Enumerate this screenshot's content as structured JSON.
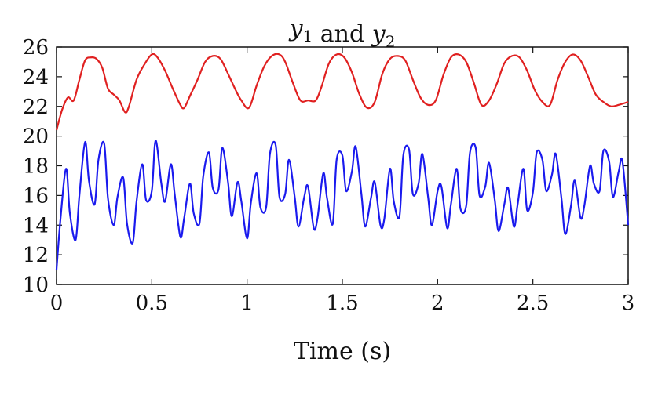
{
  "chart_data": {
    "type": "line",
    "title": "y1 and y2",
    "title_parts": [
      {
        "base": "y",
        "sub": "1"
      },
      {
        "text": " and "
      },
      {
        "base": "y",
        "sub": "2"
      }
    ],
    "xlabel": "Time (s)",
    "ylabel": "",
    "xlim": [
      0,
      3
    ],
    "ylim": [
      10,
      26
    ],
    "xticks": [
      0,
      0.5,
      1,
      1.5,
      2,
      2.5,
      3
    ],
    "xtick_labels": [
      "0",
      "0.5",
      "1",
      "1.5",
      "2",
      "2.5",
      "3"
    ],
    "yticks": [
      10,
      12,
      14,
      16,
      18,
      20,
      22,
      24,
      26
    ],
    "ytick_labels": [
      "10",
      "12",
      "14",
      "16",
      "18",
      "20",
      "22",
      "24",
      "26"
    ],
    "grid": false,
    "series": [
      {
        "color": "#e02020",
        "x": [
          0,
          0.03,
          0.06,
          0.09,
          0.12,
          0.15,
          0.18,
          0.21,
          0.24,
          0.27,
          0.3,
          0.33,
          0.36,
          0.38,
          0.42,
          0.46,
          0.5,
          0.53,
          0.57,
          0.61,
          0.65,
          0.67,
          0.7,
          0.74,
          0.78,
          0.82,
          0.86,
          0.9,
          0.94,
          0.97,
          1.01,
          1.05,
          1.09,
          1.13,
          1.17,
          1.2,
          1.24,
          1.28,
          1.32,
          1.36,
          1.39,
          1.43,
          1.47,
          1.51,
          1.55,
          1.59,
          1.63,
          1.67,
          1.71,
          1.75,
          1.79,
          1.83,
          1.87,
          1.91,
          1.95,
          1.99,
          2.03,
          2.07,
          2.11,
          2.15,
          2.19,
          2.23,
          2.27,
          2.31,
          2.35,
          2.39,
          2.43,
          2.47,
          2.51,
          2.55,
          2.59,
          2.63,
          2.67,
          2.71,
          2.75,
          2.79,
          2.83,
          2.87,
          2.91,
          2.95,
          3.0
        ],
        "y": [
          20.4,
          21.8,
          22.6,
          22.4,
          23.8,
          25.1,
          25.3,
          25.2,
          24.6,
          23.2,
          22.8,
          22.4,
          21.6,
          22.0,
          23.8,
          24.8,
          25.5,
          25.3,
          24.4,
          23.2,
          22.1,
          21.9,
          22.7,
          23.8,
          25.0,
          25.4,
          25.2,
          24.2,
          23.1,
          22.4,
          21.9,
          23.4,
          24.7,
          25.4,
          25.5,
          25.0,
          23.6,
          22.4,
          22.4,
          22.4,
          23.3,
          24.9,
          25.5,
          25.3,
          24.3,
          22.8,
          21.9,
          22.3,
          24.2,
          25.2,
          25.4,
          25.1,
          23.8,
          22.6,
          22.1,
          22.4,
          24.1,
          25.3,
          25.5,
          25.0,
          23.6,
          22.1,
          22.4,
          23.5,
          24.9,
          25.4,
          25.3,
          24.4,
          23.1,
          22.3,
          22.1,
          23.8,
          25.0,
          25.5,
          25.1,
          24.0,
          22.8,
          22.3,
          22.0,
          22.1,
          22.3
        ]
      },
      {
        "color": "#1a1aee",
        "mode": "wave",
        "x_range": [
          0,
          3
        ],
        "note": "oscillating trace between about 12.8 and 19.7"
      }
    ],
    "series2_points": {
      "x": [
        0.0,
        0.02,
        0.05,
        0.07,
        0.1,
        0.12,
        0.15,
        0.17,
        0.2,
        0.22,
        0.25,
        0.27,
        0.3,
        0.32,
        0.35,
        0.37,
        0.4,
        0.42,
        0.45,
        0.47,
        0.5,
        0.52,
        0.55,
        0.57,
        0.6,
        0.62,
        0.65,
        0.67,
        0.7,
        0.72,
        0.75,
        0.77,
        0.8,
        0.82,
        0.85,
        0.87,
        0.9,
        0.92,
        0.95,
        0.97,
        1.0,
        1.02,
        1.05,
        1.07,
        1.1,
        1.12,
        1.15,
        1.17,
        1.2,
        1.22,
        1.25,
        1.27,
        1.3,
        1.32,
        1.35,
        1.37,
        1.4,
        1.42,
        1.45,
        1.47,
        1.5,
        1.52,
        1.55,
        1.57,
        1.6,
        1.62,
        1.65,
        1.67,
        1.7,
        1.72,
        1.75,
        1.77,
        1.8,
        1.82,
        1.85,
        1.87,
        1.9,
        1.92,
        1.95,
        1.97,
        2.0,
        2.02,
        2.05,
        2.07,
        2.1,
        2.12,
        2.15,
        2.17,
        2.2,
        2.22,
        2.25,
        2.27,
        2.3,
        2.32,
        2.35,
        2.37,
        2.4,
        2.42,
        2.45,
        2.47,
        2.5,
        2.52,
        2.55,
        2.57,
        2.6,
        2.62,
        2.65,
        2.67,
        2.7,
        2.72,
        2.75,
        2.77,
        2.8,
        2.82,
        2.85,
        2.87,
        2.9,
        2.92,
        2.95,
        2.97,
        3.0
      ],
      "y": [
        11.0,
        14.3,
        17.8,
        14.8,
        13.0,
        16.0,
        19.6,
        17.0,
        15.4,
        18.4,
        19.5,
        15.8,
        14.0,
        15.9,
        17.2,
        14.1,
        12.8,
        15.6,
        18.1,
        15.7,
        16.3,
        19.7,
        16.8,
        15.6,
        18.1,
        16.1,
        13.2,
        14.5,
        16.8,
        14.8,
        14.1,
        17.3,
        18.9,
        16.5,
        16.4,
        19.2,
        16.9,
        14.6,
        16.9,
        15.6,
        13.1,
        15.5,
        17.5,
        15.2,
        15.2,
        18.8,
        19.4,
        15.9,
        16.1,
        18.4,
        15.9,
        13.9,
        15.9,
        16.6,
        13.8,
        14.5,
        17.5,
        15.8,
        14.1,
        18.4,
        18.7,
        16.3,
        17.6,
        19.3,
        16.1,
        13.9,
        15.8,
        16.9,
        14.0,
        14.4,
        17.8,
        15.6,
        14.6,
        18.7,
        19.1,
        16.1,
        16.8,
        18.8,
        15.9,
        14.0,
        16.3,
        16.6,
        13.8,
        15.4,
        17.8,
        15.1,
        15.3,
        18.9,
        19.2,
        16.0,
        16.6,
        18.2,
        15.7,
        13.6,
        15.4,
        16.5,
        13.9,
        15.4,
        17.8,
        15.0,
        16.2,
        18.9,
        18.4,
        16.3,
        17.4,
        18.8,
        15.8,
        13.4,
        15.3,
        17.0,
        14.5,
        15.3,
        18.0,
        16.8,
        16.3,
        19.0,
        18.3,
        15.9,
        17.6,
        18.3,
        14.0
      ]
    }
  }
}
